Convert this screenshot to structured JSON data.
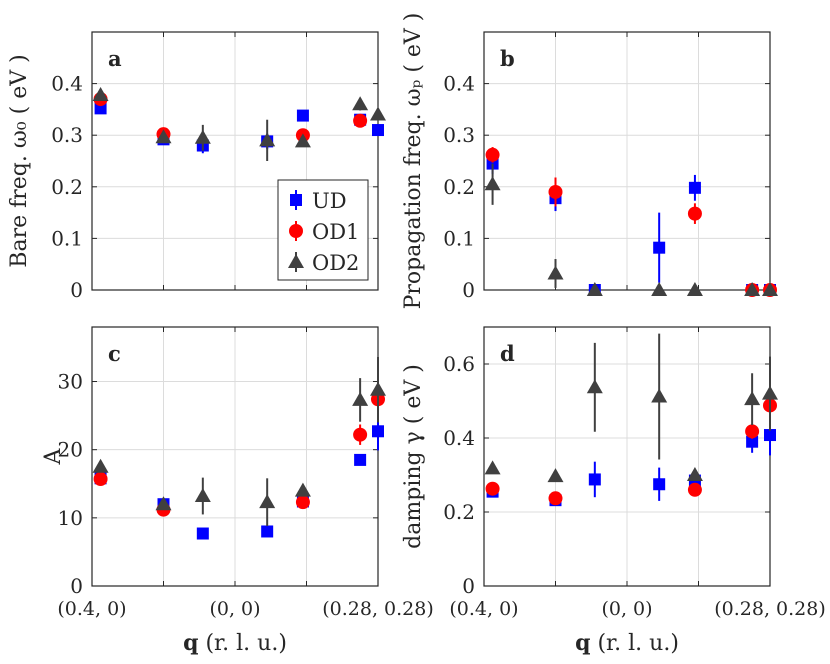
{
  "chart_data": {
    "type": "scatter",
    "x_categories": [
      "(0.4, 0)",
      "(0, 0)",
      "(0.28, 0.28)"
    ],
    "x_range": [
      0,
      4
    ],
    "x_label": {
      "bold": "q",
      "rest": " (r. l. u.)"
    },
    "series_styles": [
      {
        "name": "UD",
        "marker": "square",
        "color": "#0000ff"
      },
      {
        "name": "OD1",
        "marker": "circle",
        "color": "#ff0000"
      },
      {
        "name": "OD2",
        "marker": "triangle",
        "color": "#404040"
      }
    ],
    "panels": [
      {
        "id": "a",
        "ylabel": "Bare freq. ω₀ ( eV )",
        "ylim": [
          0,
          0.5
        ],
        "yticks": [
          "0",
          "0.1",
          "0.2",
          "0.3",
          "0.4"
        ],
        "ytick_values": [
          0,
          0.1,
          0.2,
          0.3,
          0.4
        ],
        "show_legend": true,
        "legend": [
          "UD",
          "OD1",
          "OD2"
        ],
        "series": [
          {
            "name": "UD",
            "points": [
              {
                "x": 0.12,
                "y": 0.352,
                "err": 0.008
              },
              {
                "x": 1.0,
                "y": 0.292,
                "err": 0.008
              },
              {
                "x": 1.55,
                "y": 0.28,
                "err": 0.015
              },
              {
                "x": 2.45,
                "y": 0.288,
                "err": 0.015
              },
              {
                "x": 2.95,
                "y": 0.338,
                "err": 0.008
              },
              {
                "x": 3.75,
                "y": 0.33,
                "err": 0.01
              },
              {
                "x": 4.0,
                "y": 0.31,
                "err": 0.01
              }
            ]
          },
          {
            "name": "OD1",
            "points": [
              {
                "x": 0.12,
                "y": 0.37,
                "err": 0.008
              },
              {
                "x": 1.0,
                "y": 0.302,
                "err": 0.008
              },
              {
                "x": 2.95,
                "y": 0.3,
                "err": 0.01
              },
              {
                "x": 3.75,
                "y": 0.328,
                "err": 0.008
              }
            ]
          },
          {
            "name": "OD2",
            "points": [
              {
                "x": 0.12,
                "y": 0.378,
                "err": 0.008
              },
              {
                "x": 1.0,
                "y": 0.296,
                "err": 0.008
              },
              {
                "x": 1.55,
                "y": 0.295,
                "err": 0.025
              },
              {
                "x": 2.45,
                "y": 0.29,
                "err": 0.04
              },
              {
                "x": 2.95,
                "y": 0.288,
                "err": 0.01
              },
              {
                "x": 3.75,
                "y": 0.36,
                "err": 0.012
              },
              {
                "x": 4.0,
                "y": 0.34,
                "err": 0.01
              }
            ]
          }
        ]
      },
      {
        "id": "b",
        "ylabel": "Propagation freq. ωₚ ( eV )",
        "ylim": [
          0,
          0.5
        ],
        "yticks": [
          "0",
          "0.1",
          "0.2",
          "0.3",
          "0.4"
        ],
        "ytick_values": [
          0,
          0.1,
          0.2,
          0.3,
          0.4
        ],
        "show_legend": false,
        "series": [
          {
            "name": "UD",
            "points": [
              {
                "x": 0.12,
                "y": 0.245,
                "err": 0.02
              },
              {
                "x": 1.0,
                "y": 0.178,
                "err": 0.025
              },
              {
                "x": 1.55,
                "y": 0.0,
                "err": 0.005
              },
              {
                "x": 2.45,
                "y": 0.082,
                "err": 0.068
              },
              {
                "x": 2.95,
                "y": 0.198,
                "err": 0.025
              },
              {
                "x": 3.75,
                "y": 0.0,
                "err": 0.005
              },
              {
                "x": 4.0,
                "y": 0.0,
                "err": 0.005
              }
            ]
          },
          {
            "name": "OD1",
            "points": [
              {
                "x": 0.12,
                "y": 0.262,
                "err": 0.015
              },
              {
                "x": 1.0,
                "y": 0.19,
                "err": 0.028
              },
              {
                "x": 2.95,
                "y": 0.148,
                "err": 0.02
              },
              {
                "x": 3.75,
                "y": 0.0,
                "err": 0.005
              },
              {
                "x": 4.0,
                "y": 0.0,
                "err": 0.005
              }
            ]
          },
          {
            "name": "OD2",
            "points": [
              {
                "x": 0.12,
                "y": 0.205,
                "err": 0.04
              },
              {
                "x": 1.0,
                "y": 0.032,
                "err": 0.028
              },
              {
                "x": 1.55,
                "y": 0.0,
                "err": 0.005
              },
              {
                "x": 2.45,
                "y": 0.0,
                "err": 0.005
              },
              {
                "x": 2.95,
                "y": 0.0,
                "err": 0.005
              },
              {
                "x": 3.75,
                "y": 0.0,
                "err": 0.005
              },
              {
                "x": 4.0,
                "y": 0.0,
                "err": 0.005
              }
            ]
          }
        ]
      },
      {
        "id": "c",
        "ylabel": "A",
        "ylim": [
          0,
          38
        ],
        "yticks": [
          "0",
          "10",
          "20",
          "30"
        ],
        "ytick_values": [
          0,
          10,
          20,
          30
        ],
        "show_legend": false,
        "series": [
          {
            "name": "UD",
            "points": [
              {
                "x": 0.12,
                "y": 15.8,
                "err": 0.6
              },
              {
                "x": 1.0,
                "y": 12.0,
                "err": 0.6
              },
              {
                "x": 1.55,
                "y": 7.7,
                "err": 0.6
              },
              {
                "x": 2.45,
                "y": 8.0,
                "err": 0.8
              },
              {
                "x": 2.95,
                "y": 12.4,
                "err": 0.6
              },
              {
                "x": 3.75,
                "y": 18.5,
                "err": 0.8
              },
              {
                "x": 4.0,
                "y": 22.7,
                "err": 2.8
              }
            ]
          },
          {
            "name": "OD1",
            "points": [
              {
                "x": 0.12,
                "y": 15.7,
                "err": 0.6
              },
              {
                "x": 1.0,
                "y": 11.2,
                "err": 0.6
              },
              {
                "x": 2.95,
                "y": 12.3,
                "err": 0.6
              },
              {
                "x": 3.75,
                "y": 22.2,
                "err": 1.5
              },
              {
                "x": 4.0,
                "y": 27.4,
                "err": 1.8
              }
            ]
          },
          {
            "name": "OD2",
            "points": [
              {
                "x": 0.12,
                "y": 17.5,
                "err": 0.6
              },
              {
                "x": 1.0,
                "y": 12.0,
                "err": 0.6
              },
              {
                "x": 1.55,
                "y": 13.2,
                "err": 2.7
              },
              {
                "x": 2.45,
                "y": 12.3,
                "err": 3.5
              },
              {
                "x": 2.95,
                "y": 14.0,
                "err": 0.8
              },
              {
                "x": 3.75,
                "y": 27.3,
                "err": 3.2
              },
              {
                "x": 4.0,
                "y": 28.8,
                "err": 4.8
              }
            ]
          }
        ]
      },
      {
        "id": "d",
        "ylabel": "damping γ ( eV )",
        "ylim": [
          0,
          0.7
        ],
        "yticks": [
          "0",
          "0.2",
          "0.4",
          "0.6"
        ],
        "ytick_values": [
          0,
          0.2,
          0.4,
          0.6
        ],
        "show_legend": false,
        "series": [
          {
            "name": "UD",
            "points": [
              {
                "x": 0.12,
                "y": 0.255,
                "err": 0.01
              },
              {
                "x": 1.0,
                "y": 0.232,
                "err": 0.01
              },
              {
                "x": 1.55,
                "y": 0.288,
                "err": 0.048
              },
              {
                "x": 2.45,
                "y": 0.275,
                "err": 0.045
              },
              {
                "x": 2.95,
                "y": 0.285,
                "err": 0.015
              },
              {
                "x": 3.75,
                "y": 0.39,
                "err": 0.03
              },
              {
                "x": 4.0,
                "y": 0.408,
                "err": 0.055
              }
            ]
          },
          {
            "name": "OD1",
            "points": [
              {
                "x": 0.12,
                "y": 0.263,
                "err": 0.01
              },
              {
                "x": 1.0,
                "y": 0.237,
                "err": 0.01
              },
              {
                "x": 2.95,
                "y": 0.26,
                "err": 0.012
              },
              {
                "x": 3.75,
                "y": 0.418,
                "err": 0.02
              },
              {
                "x": 4.0,
                "y": 0.488,
                "err": 0.04
              }
            ]
          },
          {
            "name": "OD2",
            "points": [
              {
                "x": 0.12,
                "y": 0.318,
                "err": 0.012
              },
              {
                "x": 1.0,
                "y": 0.297,
                "err": 0.012
              },
              {
                "x": 1.55,
                "y": 0.537,
                "err": 0.12
              },
              {
                "x": 2.45,
                "y": 0.512,
                "err": 0.17
              },
              {
                "x": 2.95,
                "y": 0.3,
                "err": 0.015
              },
              {
                "x": 3.75,
                "y": 0.505,
                "err": 0.07
              },
              {
                "x": 4.0,
                "y": 0.52,
                "err": 0.1
              }
            ]
          }
        ]
      }
    ]
  }
}
